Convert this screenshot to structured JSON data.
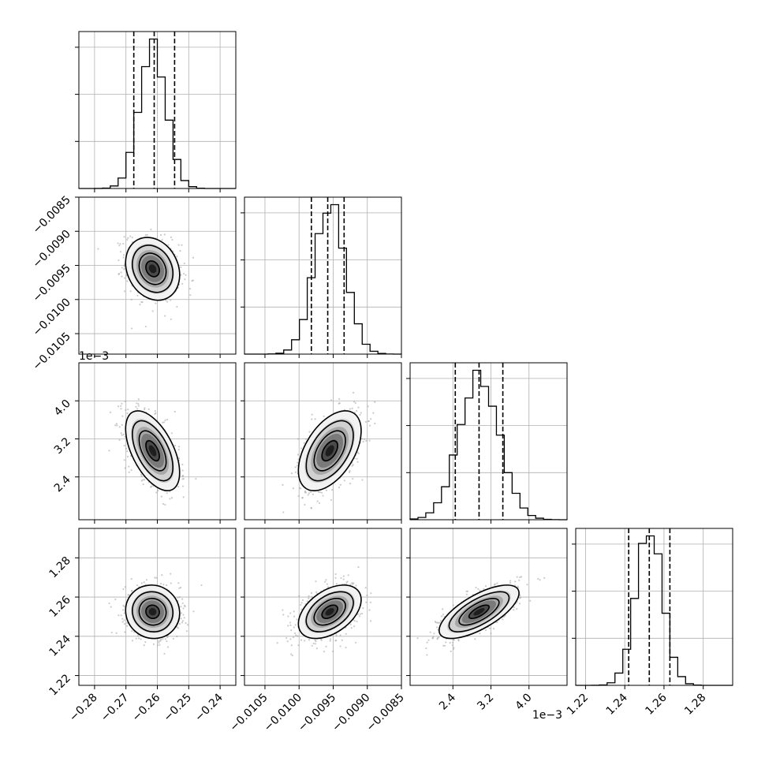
{
  "chart_data": {
    "type": "corner",
    "grid": true,
    "n_params": 4,
    "params": [
      {
        "range": [
          -0.285,
          -0.235
        ],
        "ticks": [
          -0.28,
          -0.27,
          -0.26,
          -0.25,
          -0.24
        ],
        "tick_labels": [
          "−0.28",
          "−0.27",
          "−0.26",
          "−0.25",
          "−0.24"
        ],
        "offset_text": "",
        "mean": -0.2615,
        "sigma": 0.0043,
        "quantiles": [
          -0.2675,
          -0.261,
          -0.2545
        ]
      },
      {
        "range": [
          -0.0108,
          -0.0085
        ],
        "ticks": [
          -0.0105,
          -0.01,
          -0.0095,
          -0.009,
          -0.0085
        ],
        "tick_labels": [
          "−0.0105",
          "−0.0100",
          "−0.0095",
          "−0.0090",
          "−0.0085"
        ],
        "offset_text": "",
        "mean": -0.00955,
        "sigma": 0.00023,
        "quantiles": [
          -0.00982,
          -0.00958,
          -0.00934
        ]
      },
      {
        "range": [
          1.5,
          4.8
        ],
        "ticks": [
          2.4,
          3.2,
          4.0
        ],
        "tick_labels": [
          "2.4",
          "3.2",
          "4.0"
        ],
        "offset_text": "1e−3",
        "mean": 2.95,
        "sigma": 0.42,
        "quantiles": [
          2.45,
          2.95,
          3.45
        ]
      },
      {
        "range": [
          1.215,
          1.295
        ],
        "ticks": [
          1.22,
          1.24,
          1.26,
          1.28
        ],
        "tick_labels": [
          "1.22",
          "1.24",
          "1.26",
          "1.28"
        ],
        "offset_text": "",
        "mean": 1.2525,
        "sigma": 0.0068,
        "quantiles": [
          1.242,
          1.2525,
          1.263
        ]
      }
    ],
    "correlations": [
      [
        1.0,
        -0.2,
        -0.55,
        -0.05
      ],
      [
        -0.2,
        1.0,
        0.5,
        0.45
      ],
      [
        -0.55,
        0.5,
        1.0,
        0.7
      ],
      [
        -0.05,
        0.45,
        0.7,
        1.0
      ]
    ],
    "hist_bins": 20,
    "contour_levels_sigma": [
      0.5,
      1.0,
      1.5,
      2.0
    ]
  }
}
